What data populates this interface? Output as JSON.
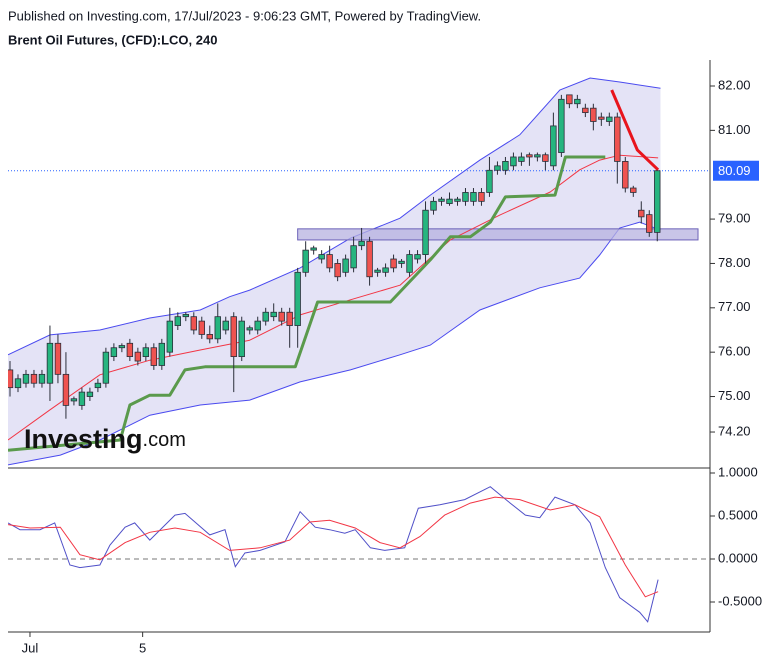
{
  "header": {
    "published": "Published on Investing.com, 17/Jul/2023 - 9:06:23 GMT, Powered by TradingView.",
    "symbol": "Brent Oil Futures, (CFD):LCO, 240"
  },
  "chart_data": [
    {
      "type": "candlestick",
      "watermark": {
        "brand": "Investing",
        "suffix": ".com"
      },
      "xlim": [
        -0.25,
        87.6
      ],
      "ylim": [
        73.389,
        82.586
      ],
      "yticks": [
        {
          "value": 82,
          "label": "82.00"
        },
        {
          "value": 81,
          "label": "81.00"
        },
        {
          "value": 79,
          "label": "79.00"
        },
        {
          "value": 78,
          "label": "78.00"
        },
        {
          "value": 77,
          "label": "77.00"
        },
        {
          "value": 76,
          "label": "76.00"
        },
        {
          "value": 75,
          "label": "75.00"
        },
        {
          "value": 74.2,
          "label": "74.20"
        }
      ],
      "up_color": "#26b57f",
      "down_color": "#ef5350",
      "outline_color": "#2a2e39",
      "open": [
        75.6,
        75.2,
        75.3,
        75.5,
        75.3,
        75.3,
        76.2,
        75.5,
        74.9,
        74.8,
        75.0,
        75.2,
        75.3,
        75.9,
        76.1,
        76.2,
        76.0,
        75.9,
        76.1,
        75.7,
        76.0,
        76.6,
        76.8,
        76.8,
        76.7,
        76.4,
        76.3,
        76.5,
        76.8,
        75.9,
        76.5,
        76.5,
        76.7,
        76.8,
        76.9,
        76.9,
        76.6,
        77.8,
        78.3,
        78.1,
        78.2,
        78.0,
        77.8,
        77.9,
        78.4,
        78.5,
        77.8,
        77.8,
        78.1,
        78.0,
        77.8,
        78.1,
        78.2,
        79.2,
        79.4,
        79.35,
        79.4,
        79.4,
        79.4,
        79.6,
        79.6,
        80.1,
        80.1,
        80.2,
        80.3,
        80.45,
        80.4,
        80.45,
        80.2,
        80.5,
        81.8,
        81.6,
        81.5,
        81.5,
        81.3,
        81.2,
        81.3,
        80.3,
        79.7,
        79.2,
        79.1,
        78.7
      ],
      "high": [
        75.8,
        75.5,
        75.6,
        75.6,
        75.6,
        76.6,
        76.4,
        76.0,
        75.0,
        75.2,
        75.2,
        75.4,
        76.1,
        76.2,
        76.2,
        76.3,
        76.1,
        76.2,
        76.2,
        76.3,
        77.0,
        76.9,
        76.9,
        76.9,
        76.8,
        76.6,
        77.1,
        76.8,
        76.9,
        76.8,
        76.6,
        76.8,
        77.0,
        77.1,
        77.0,
        77.0,
        77.9,
        78.5,
        78.4,
        78.3,
        78.4,
        78.1,
        78.2,
        78.6,
        78.8,
        78.6,
        77.9,
        78.0,
        78.2,
        78.1,
        78.3,
        78.3,
        79.4,
        79.5,
        79.5,
        79.6,
        79.5,
        79.7,
        79.7,
        79.7,
        80.4,
        80.3,
        80.4,
        80.5,
        80.5,
        80.5,
        80.5,
        80.5,
        81.4,
        81.8,
        81.8,
        81.8,
        81.6,
        81.6,
        81.4,
        81.4,
        81.4,
        80.4,
        79.75,
        79.4,
        79.2,
        80.1
      ],
      "low": [
        75.0,
        75.1,
        75.2,
        75.2,
        75.2,
        74.9,
        75.3,
        74.5,
        74.8,
        74.7,
        74.9,
        75.1,
        75.2,
        75.8,
        76.0,
        75.8,
        75.7,
        75.8,
        75.6,
        75.6,
        75.9,
        76.5,
        76.7,
        76.4,
        76.3,
        76.2,
        76.2,
        76.4,
        75.1,
        75.8,
        76.4,
        76.4,
        76.6,
        76.7,
        76.6,
        76.1,
        76.1,
        77.7,
        78.2,
        78.0,
        77.8,
        77.6,
        77.7,
        77.8,
        78.3,
        77.5,
        77.7,
        77.7,
        77.8,
        77.9,
        77.7,
        78.0,
        78.0,
        79.1,
        79.3,
        79.3,
        79.3,
        79.3,
        79.3,
        79.3,
        79.5,
        80.0,
        80.0,
        80.1,
        80.2,
        80.2,
        80.3,
        80.1,
        80.1,
        80.4,
        81.5,
        81.5,
        81.3,
        81.0,
        81.1,
        81.1,
        79.8,
        79.6,
        79.5,
        78.9,
        78.6,
        78.5
      ],
      "close": [
        75.2,
        75.4,
        75.5,
        75.3,
        75.5,
        76.2,
        75.5,
        74.8,
        74.95,
        75.1,
        75.1,
        75.3,
        76.0,
        76.1,
        76.15,
        75.9,
        75.8,
        76.1,
        75.7,
        76.2,
        76.7,
        76.8,
        76.85,
        76.5,
        76.4,
        76.3,
        76.8,
        76.7,
        75.9,
        76.7,
        76.55,
        76.7,
        76.9,
        76.9,
        76.7,
        76.6,
        77.8,
        78.3,
        78.35,
        78.2,
        77.9,
        77.7,
        78.1,
        78.4,
        78.5,
        77.7,
        77.85,
        77.9,
        77.9,
        78.05,
        78.2,
        78.2,
        79.2,
        79.4,
        79.45,
        79.45,
        79.45,
        79.6,
        79.6,
        79.4,
        80.1,
        80.2,
        80.3,
        80.4,
        80.4,
        80.4,
        80.45,
        80.3,
        81.1,
        81.7,
        81.6,
        81.7,
        81.4,
        81.2,
        81.25,
        81.3,
        80.3,
        79.7,
        79.6,
        79.05,
        78.7,
        80.09
      ],
      "band": {
        "fill": "#e4e3f6",
        "color": "#4a4aef",
        "upper": {
          "x": [
            -0.25,
            5.0,
            11.25,
            17.5,
            23.8,
            27.5,
            30.0,
            36.3,
            42.6,
            48.8,
            52.6,
            58.8,
            63.8,
            68.8,
            72.6,
            76.3,
            81.4
          ],
          "values": [
            75.94,
            76.39,
            76.5,
            76.77,
            76.95,
            77.25,
            77.4,
            77.9,
            78.57,
            79.02,
            79.54,
            80.33,
            80.9,
            81.91,
            82.18,
            82.09,
            81.95
          ]
        },
        "lower": {
          "x": [
            -0.25,
            6.3,
            11.25,
            17.5,
            23.8,
            30.0,
            36.3,
            42.6,
            48.8,
            52.6,
            58.8,
            66.3,
            71.3,
            73.8,
            76.3,
            78.8,
            81.4
          ],
          "values": [
            73.46,
            73.68,
            74.02,
            74.58,
            74.81,
            74.92,
            75.33,
            75.6,
            75.94,
            76.16,
            76.95,
            77.45,
            77.67,
            78.19,
            78.8,
            78.93,
            78.75
          ]
        }
      },
      "lines": [
        {
          "color": "#f23645",
          "width": 1,
          "x": [
            -0.25,
            5.0,
            11.25,
            17.5,
            23.8,
            30.0,
            36.3,
            42.6,
            48.8,
            55.1,
            61.3,
            67.6,
            71.3,
            73.8,
            76.3,
            81.1
          ],
          "values": [
            74.02,
            74.7,
            75.49,
            75.82,
            76.05,
            76.27,
            76.84,
            77.18,
            77.51,
            78.53,
            79.09,
            79.61,
            80.11,
            80.33,
            80.44,
            80.38
          ]
        },
        {
          "color": "#5a9a4c",
          "width": 3,
          "x": [
            -0.25,
            13.8,
            15.0,
            17.5,
            20.0,
            21.9,
            24.4,
            35.7,
            38.5,
            47.6,
            52.6,
            55.1,
            57.6,
            60.1,
            62.0,
            68.2,
            69.5,
            74.5
          ],
          "values": [
            73.79,
            74.02,
            74.81,
            75.03,
            75.03,
            75.6,
            75.67,
            75.67,
            77.13,
            77.13,
            78.08,
            78.6,
            78.6,
            78.93,
            79.5,
            79.54,
            80.4,
            80.4
          ]
        },
        {
          "color": "#e8141c",
          "width": 3,
          "x": [
            75.3,
            78.5,
            81.1
          ],
          "values": [
            81.91,
            80.56,
            80.11
          ]
        }
      ],
      "zone": {
        "x": [
          36.0,
          86.1
        ],
        "y": [
          78.53,
          78.78
        ],
        "color": "#b7b1e0"
      },
      "last_price": {
        "value": 80.09,
        "label": "80.09"
      },
      "last_price_color": "#2962ff"
    },
    {
      "type": "line",
      "xlim": [
        -0.25,
        87.6
      ],
      "ylim": [
        -0.849,
        1.058
      ],
      "yticks": [
        {
          "value": 1,
          "label": "1.0000"
        },
        {
          "value": 0.5,
          "label": "0.5000"
        },
        {
          "value": 0,
          "label": "0.0000"
        },
        {
          "value": -0.5,
          "label": "-0.5000"
        }
      ],
      "xticks": [
        {
          "value": 2.5,
          "label": "Jul"
        },
        {
          "value": 16.6,
          "label": "5"
        }
      ],
      "hline": 0,
      "series": [
        {
          "color": "#5050c8",
          "x": [
            -0.25,
            1.25,
            3.75,
            5.6,
            7.5,
            8.75,
            11.25,
            12.5,
            14.4,
            15.6,
            17.5,
            20.65,
            21.9,
            25.0,
            26.9,
            28.2,
            29.4,
            31.3,
            34.4,
            36.3,
            38.2,
            40.0,
            41.9,
            43.2,
            45.1,
            46.9,
            49.4,
            51.1,
            53.8,
            56.9,
            60.1,
            62.6,
            64.5,
            66.3,
            68.2,
            70.7,
            72.6,
            74.5,
            76.3,
            78.8,
            79.8,
            81.1
          ],
          "values": [
            0.42,
            0.34,
            0.34,
            0.42,
            -0.07,
            -0.1,
            -0.07,
            0.16,
            0.37,
            0.42,
            0.22,
            0.51,
            0.53,
            0.28,
            0.34,
            -0.09,
            0.07,
            0.1,
            0.2,
            0.55,
            0.37,
            0.34,
            0.3,
            0.34,
            0.13,
            0.1,
            0.13,
            0.59,
            0.63,
            0.69,
            0.84,
            0.65,
            0.51,
            0.48,
            0.72,
            0.63,
            0.42,
            -0.1,
            -0.45,
            -0.62,
            -0.73,
            -0.24
          ]
        },
        {
          "color": "#f23645",
          "x": [
            -0.25,
            2.5,
            6.3,
            8.75,
            11.25,
            14.4,
            17.5,
            20.65,
            23.8,
            27.5,
            31.3,
            35.0,
            37.5,
            40.0,
            43.2,
            46.3,
            48.8,
            51.3,
            54.4,
            57.6,
            60.7,
            63.8,
            67.6,
            70.7,
            73.8,
            77.0,
            79.5,
            81.1
          ],
          "values": [
            0.4,
            0.36,
            0.37,
            0.05,
            -0.01,
            0.19,
            0.31,
            0.36,
            0.31,
            0.1,
            0.13,
            0.22,
            0.43,
            0.45,
            0.36,
            0.19,
            0.13,
            0.26,
            0.51,
            0.65,
            0.72,
            0.69,
            0.57,
            0.63,
            0.49,
            -0.07,
            -0.44,
            -0.38
          ]
        }
      ]
    }
  ]
}
